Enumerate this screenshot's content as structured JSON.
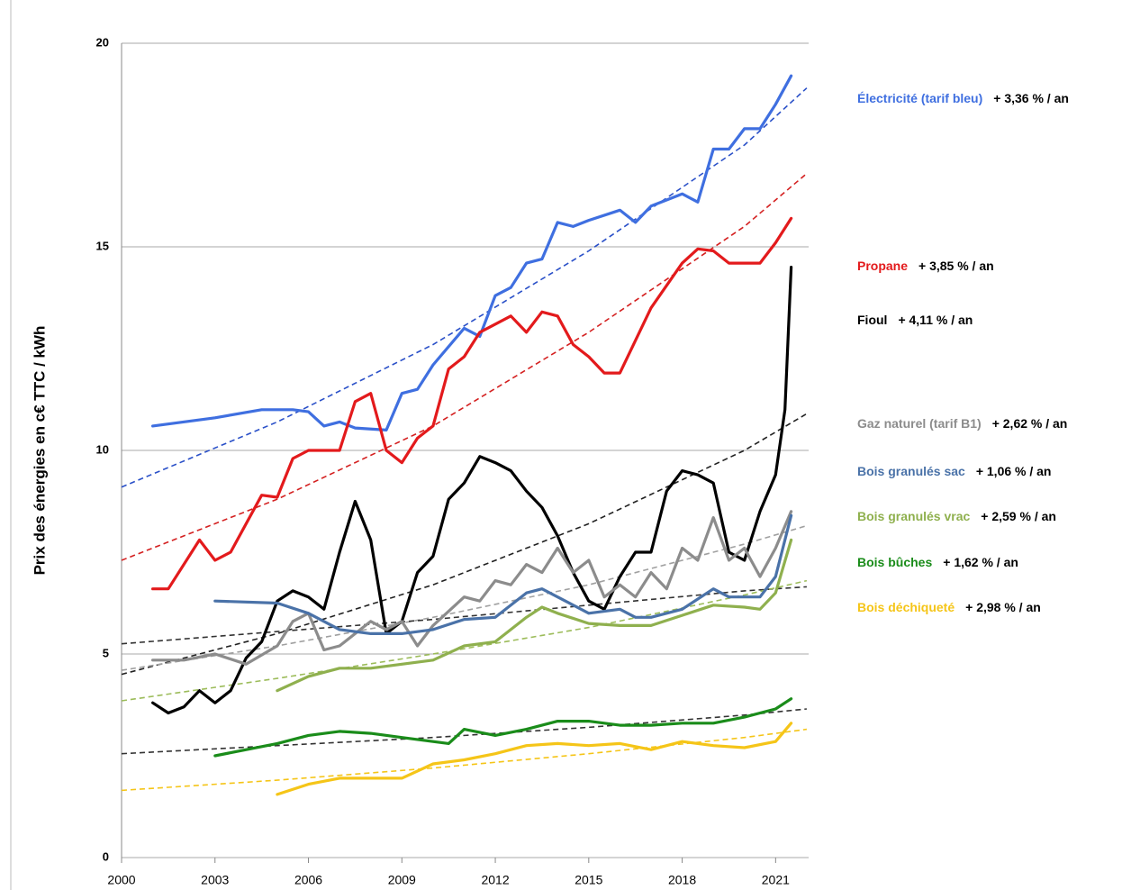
{
  "chart_data": {
    "type": "line",
    "y_label": "Prix des énergies en c€ TTC / kWh",
    "xlim": [
      2000,
      2022.06
    ],
    "xticks": [
      2000,
      2003,
      2006,
      2009,
      2012,
      2015,
      2018,
      2021
    ],
    "ylim": [
      0,
      20
    ],
    "yticks": [
      0,
      5,
      10,
      15,
      20
    ],
    "grid": true,
    "trend_x": [
      2000,
      2005,
      2010,
      2015,
      2020,
      2022
    ],
    "series": [
      {
        "name": "Électricité (tarif bleu)",
        "rate": "+ 3,36 % / an",
        "color": "#3f6fe0",
        "trend_color": "#2a50c8",
        "x": [
          2001,
          2003,
          2004.5,
          2005.5,
          2006,
          2006.5,
          2007,
          2007.5,
          2008.5,
          2009,
          2009.5,
          2010,
          2011,
          2011.5,
          2012,
          2012.5,
          2013,
          2013.5,
          2014,
          2014.5,
          2015,
          2016,
          2016.5,
          2017,
          2018,
          2018.5,
          2019,
          2019.5,
          2020,
          2020.5,
          2021,
          2021.5
        ],
        "values": [
          10.6,
          10.8,
          11.0,
          11.0,
          10.95,
          10.6,
          10.7,
          10.55,
          10.5,
          11.4,
          11.5,
          12.1,
          13.0,
          12.8,
          13.8,
          14.0,
          14.6,
          14.7,
          15.6,
          15.5,
          15.65,
          15.9,
          15.6,
          16.0,
          16.3,
          16.1,
          17.4,
          17.4,
          17.9,
          17.9,
          18.5,
          19.2
        ],
        "trend": [
          9.1,
          10.7,
          12.6,
          14.9,
          17.5,
          18.9
        ]
      },
      {
        "name": "Propane",
        "rate": "+ 3,85 % / an",
        "color": "#e31a1c",
        "trend_color": "#d42020",
        "x": [
          2001,
          2001.5,
          2002.5,
          2003,
          2003.5,
          2004.5,
          2005,
          2005.5,
          2006,
          2007,
          2007.5,
          2008,
          2008.5,
          2009,
          2009.5,
          2010,
          2010.5,
          2011,
          2011.5,
          2012.5,
          2013,
          2013.5,
          2014,
          2014.5,
          2015,
          2015.5,
          2016,
          2017,
          2018,
          2018.5,
          2019,
          2019.5,
          2020.5,
          2021,
          2021.5
        ],
        "values": [
          6.6,
          6.6,
          7.8,
          7.3,
          7.5,
          8.9,
          8.85,
          9.8,
          10.0,
          10.0,
          11.2,
          11.4,
          10.0,
          9.7,
          10.3,
          10.6,
          12.0,
          12.3,
          12.9,
          13.3,
          12.9,
          13.4,
          13.3,
          12.6,
          12.3,
          11.9,
          11.9,
          13.5,
          14.6,
          14.95,
          14.9,
          14.6,
          14.6,
          15.1,
          15.7
        ],
        "trend": [
          7.3,
          8.8,
          10.6,
          12.9,
          15.5,
          16.8
        ]
      },
      {
        "name": "Fioul",
        "rate": "+ 4,11 % / an",
        "color": "#000000",
        "trend_color": "#222222",
        "x": [
          2001,
          2001.5,
          2002,
          2002.5,
          2003,
          2003.5,
          2004,
          2004.5,
          2005,
          2005.5,
          2006,
          2006.5,
          2007,
          2007.5,
          2008,
          2008.5,
          2009,
          2009.5,
          2010,
          2010.5,
          2011,
          2011.5,
          2012,
          2012.5,
          2013,
          2013.5,
          2014,
          2014.5,
          2015,
          2015.5,
          2016,
          2016.5,
          2017,
          2017.5,
          2018,
          2018.5,
          2019,
          2019.5,
          2020,
          2020.5,
          2021,
          2021.3,
          2021.5
        ],
        "values": [
          3.8,
          3.55,
          3.7,
          4.1,
          3.8,
          4.1,
          4.9,
          5.3,
          6.3,
          6.55,
          6.4,
          6.1,
          7.5,
          8.75,
          7.8,
          5.5,
          5.8,
          7.0,
          7.4,
          8.8,
          9.2,
          9.85,
          9.7,
          9.5,
          9.0,
          8.6,
          7.9,
          7.0,
          6.3,
          6.1,
          6.9,
          7.5,
          7.5,
          9.0,
          9.5,
          9.4,
          9.2,
          7.5,
          7.3,
          8.5,
          9.4,
          11.0,
          14.5
        ],
        "trend": [
          4.5,
          5.5,
          6.7,
          8.2,
          10.0,
          10.9
        ]
      },
      {
        "name": "Gaz naturel (tarif B1)",
        "rate": "+ 2,62 % / an",
        "color": "#8c8c8c",
        "trend_color": "#a0a0a0",
        "x": [
          2001,
          2002,
          2003,
          2004,
          2005,
          2005.5,
          2006,
          2006.5,
          2007,
          2008,
          2008.5,
          2009,
          2009.5,
          2010,
          2011,
          2011.5,
          2012,
          2012.5,
          2013,
          2013.5,
          2014,
          2014.5,
          2015,
          2015.5,
          2016,
          2016.5,
          2017,
          2017.5,
          2018,
          2018.5,
          2019,
          2019.5,
          2020,
          2020.5,
          2021,
          2021.5
        ],
        "values": [
          4.85,
          4.85,
          5.0,
          4.75,
          5.2,
          5.8,
          6.0,
          5.1,
          5.2,
          5.8,
          5.6,
          5.8,
          5.2,
          5.7,
          6.4,
          6.3,
          6.8,
          6.7,
          7.2,
          7.0,
          7.6,
          7.0,
          7.3,
          6.4,
          6.7,
          6.4,
          7.0,
          6.6,
          7.6,
          7.3,
          8.35,
          7.3,
          7.6,
          6.9,
          7.6,
          8.5
        ],
        "trend": [
          4.6,
          5.2,
          5.9,
          6.7,
          7.7,
          8.15
        ]
      },
      {
        "name": "Bois granulés sac",
        "rate": "+ 1,06 % / an",
        "color": "#4a72a8",
        "trend_color": "#333333",
        "x": [
          2003,
          2005,
          2006,
          2007,
          2008,
          2009,
          2010,
          2011,
          2012,
          2013,
          2013.5,
          2014,
          2015,
          2016,
          2016.5,
          2017,
          2018,
          2019,
          2019.5,
          2020,
          2020.5,
          2021,
          2021.5
        ],
        "values": [
          6.3,
          6.25,
          6.0,
          5.6,
          5.5,
          5.5,
          5.6,
          5.85,
          5.9,
          6.5,
          6.6,
          6.4,
          6.0,
          6.1,
          5.9,
          5.9,
          6.1,
          6.6,
          6.4,
          6.4,
          6.4,
          6.9,
          8.4
        ],
        "trend": [
          5.25,
          5.55,
          5.85,
          6.2,
          6.55,
          6.65
        ]
      },
      {
        "name": "Bois granulés vrac",
        "rate": "+ 2,59 % / an",
        "color": "#8fb04e",
        "trend_color": "#9cbc5a",
        "x": [
          2005,
          2006,
          2007,
          2008,
          2009,
          2010,
          2011,
          2012,
          2013,
          2013.5,
          2014,
          2015,
          2016,
          2017,
          2018,
          2019,
          2020,
          2020.5,
          2021,
          2021.5
        ],
        "values": [
          4.1,
          4.45,
          4.65,
          4.65,
          4.75,
          4.85,
          5.2,
          5.3,
          5.9,
          6.15,
          6.0,
          5.75,
          5.7,
          5.7,
          5.95,
          6.2,
          6.15,
          6.1,
          6.5,
          7.8
        ],
        "trend": [
          3.85,
          4.4,
          5.0,
          5.65,
          6.45,
          6.8
        ]
      },
      {
        "name": "Bois bûches",
        "rate": "+ 1,62 % / an",
        "color": "#1a8c1a",
        "trend_color": "#333333",
        "x": [
          2003,
          2005,
          2006,
          2007,
          2008,
          2009,
          2010,
          2010.5,
          2011,
          2012,
          2013,
          2014,
          2015,
          2016,
          2017,
          2018,
          2019,
          2020,
          2021,
          2021.5
        ],
        "values": [
          2.5,
          2.8,
          3.0,
          3.1,
          3.05,
          2.95,
          2.85,
          2.8,
          3.15,
          3.0,
          3.15,
          3.35,
          3.35,
          3.25,
          3.25,
          3.3,
          3.3,
          3.45,
          3.65,
          3.9
        ],
        "trend": [
          2.55,
          2.75,
          2.95,
          3.2,
          3.5,
          3.65
        ]
      },
      {
        "name": "Bois déchiqueté",
        "rate": "+ 2,98 % / an",
        "color": "#f5c518",
        "trend_color": "#f5c518",
        "x": [
          2005,
          2006,
          2007,
          2008,
          2009,
          2010,
          2011,
          2012,
          2013,
          2014,
          2015,
          2016,
          2017,
          2018,
          2019,
          2020,
          2021,
          2021.5
        ],
        "values": [
          1.55,
          1.8,
          1.95,
          1.95,
          1.95,
          2.3,
          2.4,
          2.55,
          2.75,
          2.8,
          2.75,
          2.8,
          2.65,
          2.85,
          2.75,
          2.7,
          2.85,
          3.3
        ],
        "trend": [
          1.65,
          1.9,
          2.2,
          2.55,
          2.95,
          3.15
        ]
      }
    ]
  }
}
